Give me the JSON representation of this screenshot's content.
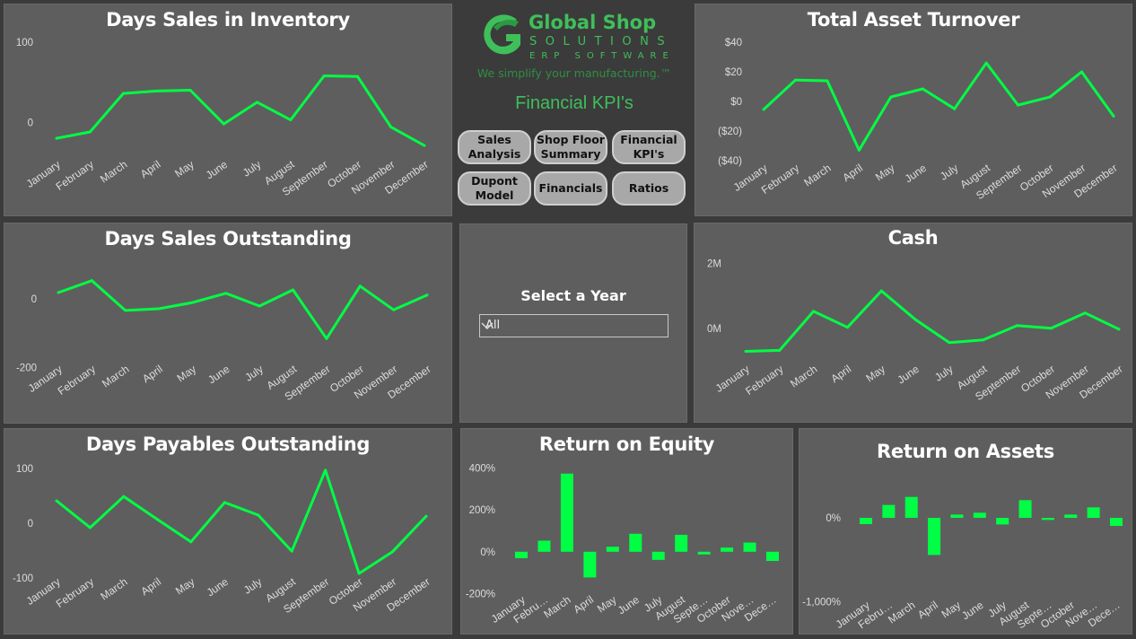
{
  "brand": {
    "logo_line1": "Global Shop",
    "logo_line2": "SOLUTIONS",
    "logo_line3": "ERP SOFTWARE",
    "tagline": "We simplify your manufacturing.™",
    "page_title": "Financial KPI's",
    "color": "#3fbf5a"
  },
  "nav": [
    {
      "label": "Sales Analysis"
    },
    {
      "label": "Shop Floor Summary"
    },
    {
      "label": "Financial KPI's"
    },
    {
      "label": "Dupont Model"
    },
    {
      "label": "Financials"
    },
    {
      "label": "Ratios"
    }
  ],
  "year_filter": {
    "label": "Select a Year",
    "value": "All",
    "icon": "chevron-down-icon"
  },
  "colors": {
    "series": "#00ff44",
    "panel": "#5e5e5e",
    "background": "#3b3b3b"
  },
  "chart_data": [
    {
      "id": "dsi",
      "type": "line",
      "title": "Days Sales in Inventory",
      "categories": [
        "January",
        "February",
        "March",
        "April",
        "May",
        "June",
        "July",
        "August",
        "September",
        "October",
        "November",
        "December"
      ],
      "values": [
        -20,
        -12,
        36,
        39,
        40,
        -2,
        25,
        3,
        58,
        57,
        -6,
        -29
      ],
      "yticks": [
        {
          "label": "100",
          "value": 100
        },
        {
          "label": "0",
          "value": 0
        }
      ],
      "ylim": [
        -40,
        110
      ],
      "grid": false
    },
    {
      "id": "tat",
      "type": "line",
      "title": "Total Asset Turnover",
      "categories": [
        "January",
        "February",
        "March",
        "April",
        "May",
        "June",
        "July",
        "August",
        "September",
        "October",
        "November",
        "December"
      ],
      "values": [
        -5.5,
        14.5,
        14,
        -33,
        3,
        8.5,
        -5,
        26,
        -2.5,
        3,
        20,
        -10
      ],
      "yticks": [
        {
          "label": "$40",
          "value": 40
        },
        {
          "label": "$20",
          "value": 20
        },
        {
          "label": "$0",
          "value": 0
        },
        {
          "label": "($20)",
          "value": -20
        },
        {
          "label": "($40)",
          "value": -40
        }
      ],
      "ylim": [
        -45,
        45
      ],
      "grid": false
    },
    {
      "id": "dso",
      "type": "line",
      "title": "Days Sales Outstanding",
      "categories": [
        "January",
        "February",
        "March",
        "April",
        "May",
        "June",
        "July",
        "August",
        "September",
        "October",
        "November",
        "December"
      ],
      "values": [
        18,
        53,
        -34,
        -29,
        -11,
        16,
        -21,
        26,
        -116,
        37,
        -32,
        11
      ],
      "yticks": [
        {
          "label": "0",
          "value": 0
        },
        {
          "label": "-200",
          "value": -200
        }
      ],
      "ylim": [
        -220,
        60
      ],
      "grid": false
    },
    {
      "id": "cash",
      "type": "line",
      "title": "Cash",
      "categories": [
        "January",
        "February",
        "March",
        "April",
        "May",
        "June",
        "July",
        "August",
        "September",
        "October",
        "November",
        "December"
      ],
      "values": [
        -0.71,
        -0.68,
        0.52,
        0.03,
        1.15,
        0.27,
        -0.44,
        -0.36,
        0.08,
        0,
        0.47,
        -0.03
      ],
      "yticks": [
        {
          "label": "2M",
          "value": 2
        },
        {
          "label": "0M",
          "value": 0
        }
      ],
      "ylim": [
        -1,
        2.2
      ],
      "grid": false
    },
    {
      "id": "dpo",
      "type": "line",
      "title": "Days Payables Outstanding",
      "categories": [
        "January",
        "February",
        "March",
        "April",
        "May",
        "June",
        "July",
        "August",
        "September",
        "October",
        "November",
        "December"
      ],
      "values": [
        41,
        -8,
        49,
        7,
        -34,
        38,
        15,
        -51,
        97,
        -92,
        -52,
        13
      ],
      "yticks": [
        {
          "label": "100",
          "value": 100
        },
        {
          "label": "0",
          "value": 0
        },
        {
          "label": "-100",
          "value": -100
        }
      ],
      "ylim": [
        -110,
        110
      ],
      "grid": false
    },
    {
      "id": "roe",
      "type": "bar",
      "title": "Return on Equity",
      "categories": [
        "January",
        "Febru…",
        "March",
        "April",
        "May",
        "June",
        "July",
        "August",
        "Septe…",
        "October",
        "Nove…",
        "Dece…"
      ],
      "values": [
        -31,
        53,
        374,
        -123,
        24,
        86,
        -39,
        81,
        -13,
        20,
        44,
        -44
      ],
      "yticks": [
        {
          "label": "400%",
          "value": 400
        },
        {
          "label": "200%",
          "value": 200
        },
        {
          "label": "0%",
          "value": 0
        },
        {
          "label": "-200%",
          "value": -200
        }
      ],
      "ylim": [
        -220,
        420
      ],
      "grid": false
    },
    {
      "id": "roa",
      "type": "bar",
      "title": "Return on Assets",
      "categories": [
        "January",
        "Febru…",
        "March",
        "April",
        "May",
        "June",
        "July",
        "August",
        "Septe…",
        "October",
        "Nove…",
        "Dece…"
      ],
      "values": [
        -75,
        154,
        250,
        -443,
        39,
        61,
        -79,
        211,
        -25,
        39,
        125,
        -96
      ],
      "yticks": [
        {
          "label": "0%",
          "value": 0
        },
        {
          "label": "-1,000%",
          "value": -1000
        }
      ],
      "ylim": [
        -1050,
        300
      ],
      "grid": false
    }
  ]
}
